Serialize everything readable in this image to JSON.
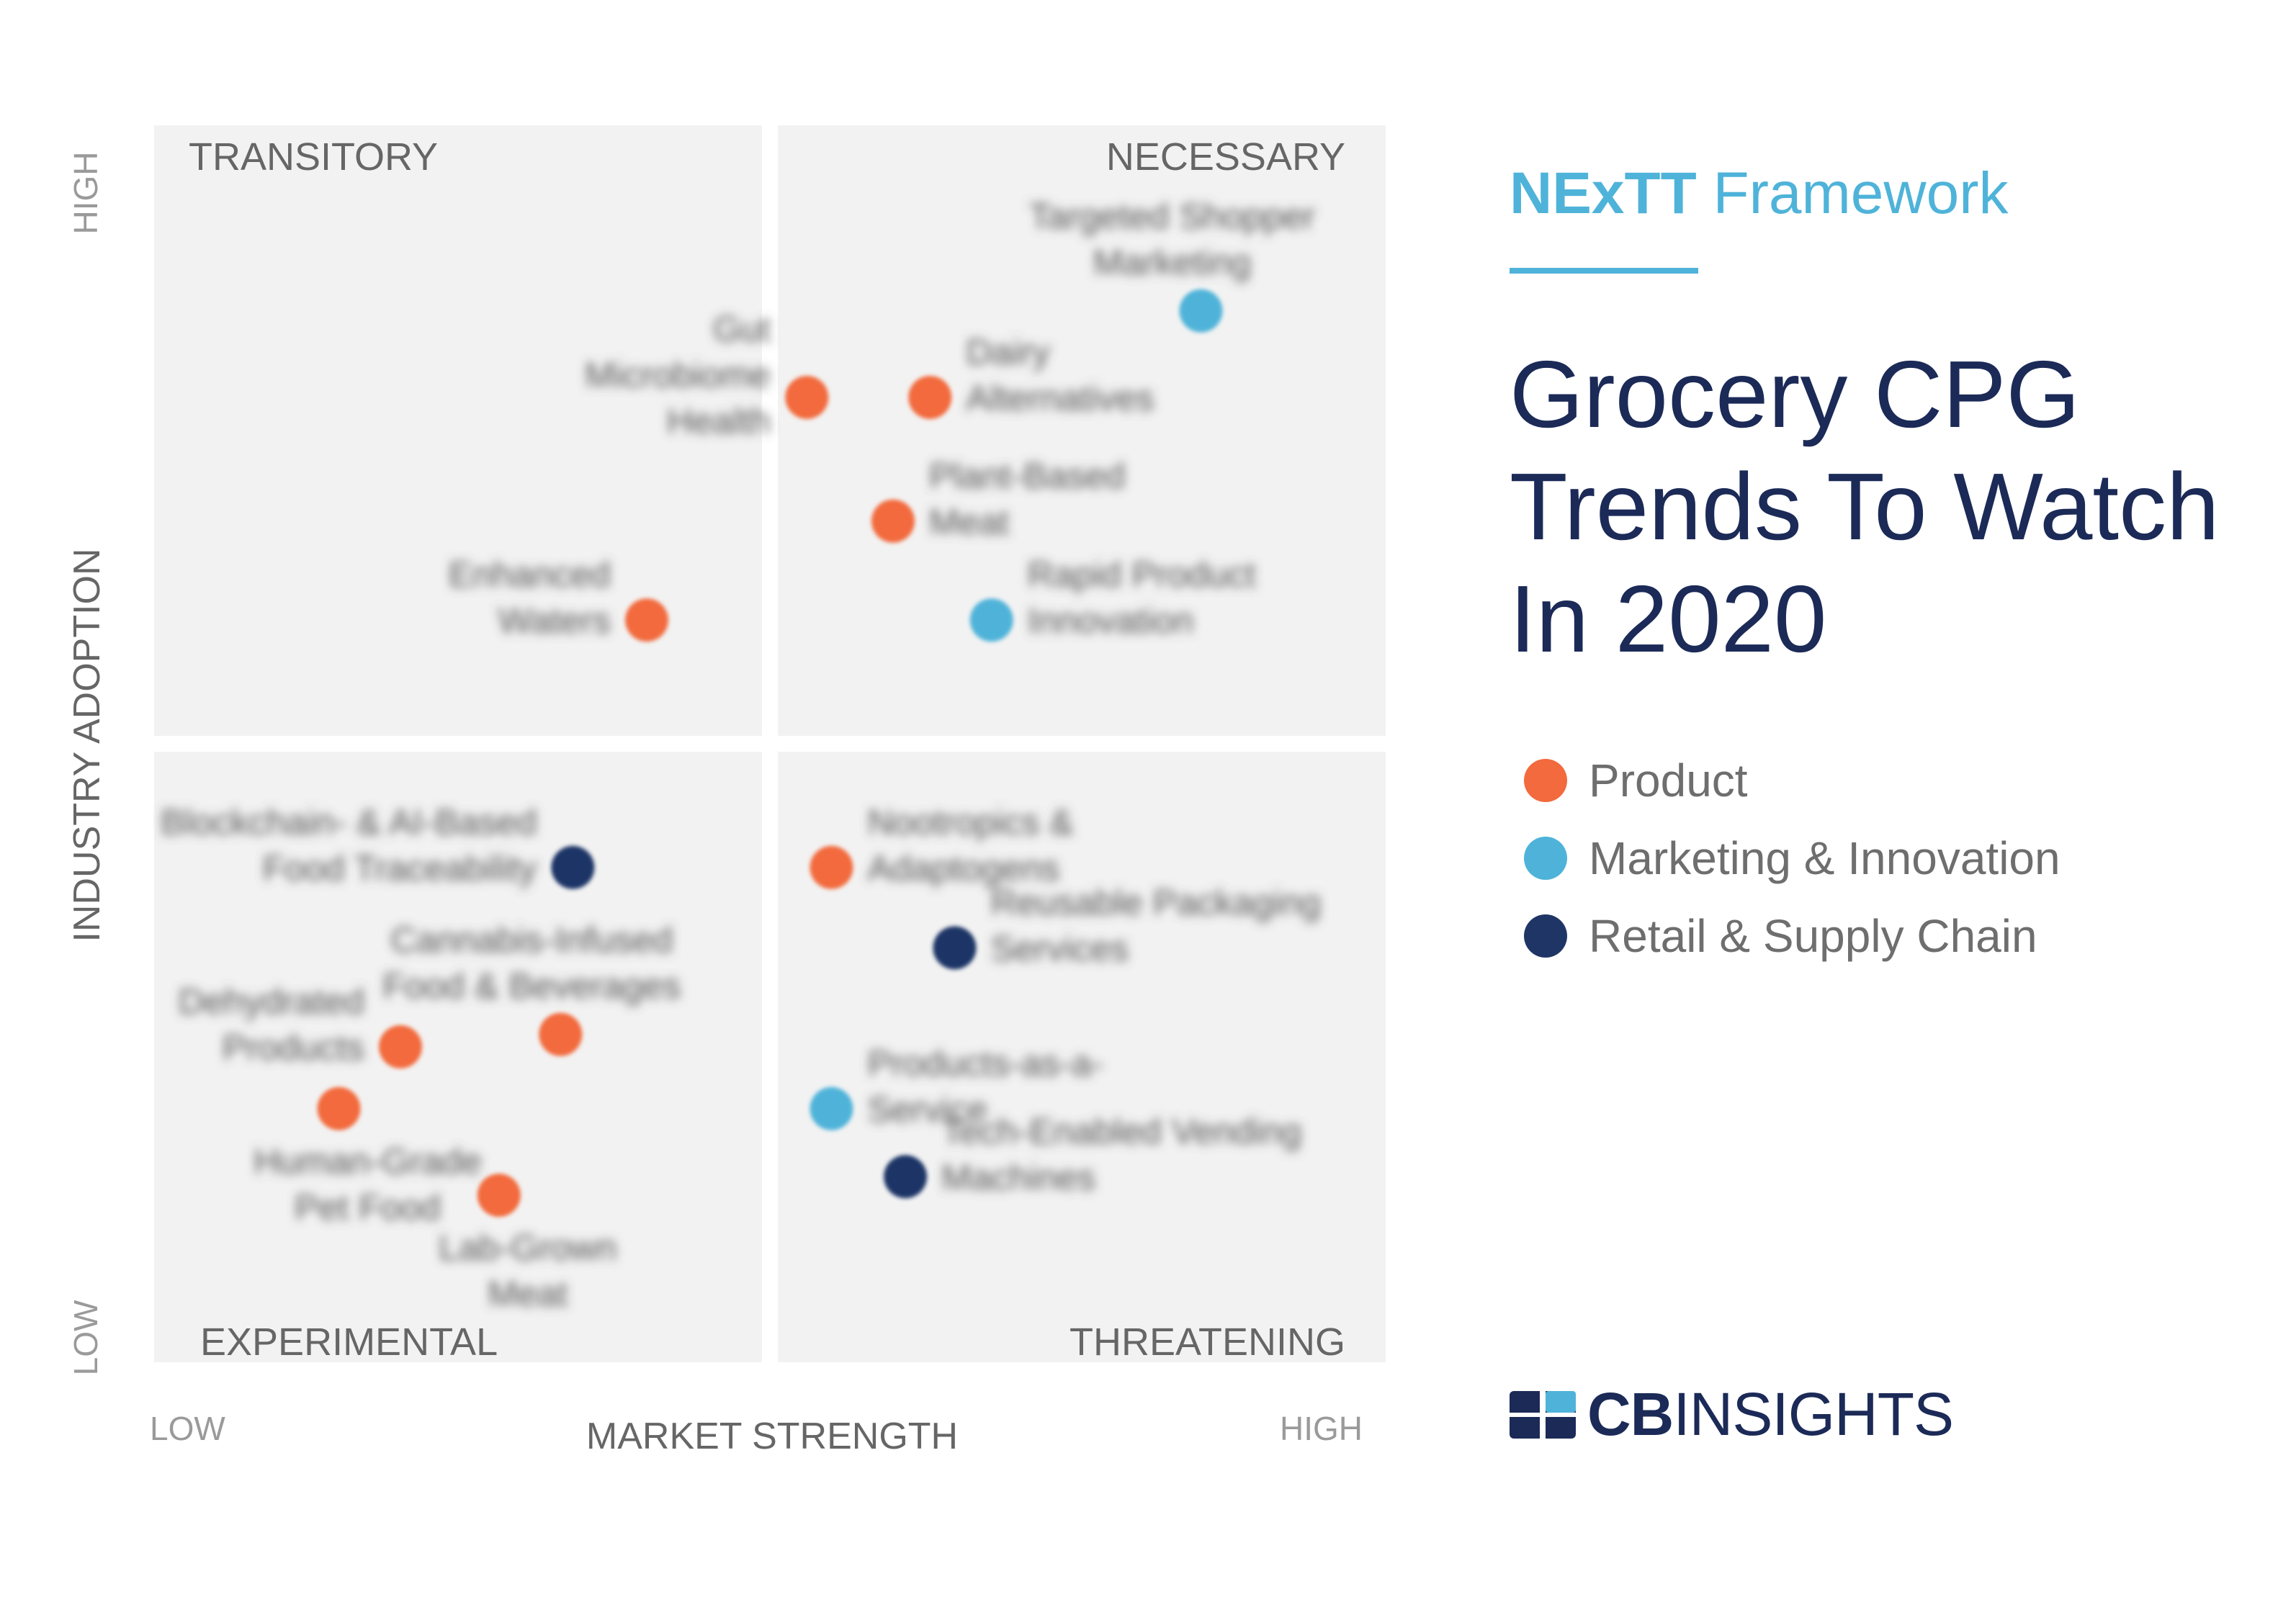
{
  "framework": {
    "bold": "NExTT",
    "rest": "Framework"
  },
  "title_lines": [
    "Grocery CPG",
    "Trends To Watch",
    "In 2020"
  ],
  "legend": [
    {
      "label": "Product",
      "color": "#f26a3d"
    },
    {
      "label": "Marketing & Innovation",
      "color": "#4fb3d9"
    },
    {
      "label": "Retail & Supply Chain",
      "color": "#1f3566"
    }
  ],
  "logo": {
    "bold": "CB",
    "rest": "INSIGHTS",
    "icon": "cb-insights-logo-icon"
  },
  "chart_data": {
    "type": "scatter",
    "quadrants": {
      "top_left": "TRANSITORY",
      "top_right": "NECESSARY",
      "bottom_left": "EXPERIMENTAL",
      "bottom_right": "THREATENING"
    },
    "xlabel": "MARKET STRENGTH",
    "ylabel": "INDUSTRY ADOPTION",
    "x_ticks": [
      "LOW",
      "HIGH"
    ],
    "y_ticks": [
      "LOW",
      "HIGH"
    ],
    "xlim": [
      0,
      1
    ],
    "ylim": [
      0,
      1
    ],
    "quadrant_split": {
      "x": 0.5,
      "y": 0.5
    },
    "categories": {
      "product": "#f26a3d",
      "marketing": "#4fb3d9",
      "retail": "#1f3566"
    },
    "points": [
      {
        "label": [
          "Targeted Shopper",
          "Marketing"
        ],
        "category": "marketing",
        "x": 0.85,
        "y": 0.85,
        "label_side": "above"
      },
      {
        "label": [
          "Gut",
          "Microbiome",
          "Health"
        ],
        "category": "product",
        "x": 0.53,
        "y": 0.78,
        "label_side": "left"
      },
      {
        "label": [
          "Dairy",
          "Alternatives"
        ],
        "category": "product",
        "x": 0.63,
        "y": 0.78,
        "label_side": "right"
      },
      {
        "label": [
          "Plant-Based",
          "Meat"
        ],
        "category": "product",
        "x": 0.6,
        "y": 0.68,
        "label_side": "right"
      },
      {
        "label": [
          "Enhanced",
          "Waters"
        ],
        "category": "product",
        "x": 0.4,
        "y": 0.6,
        "label_side": "left"
      },
      {
        "label": [
          "Rapid Product",
          "Innovation"
        ],
        "category": "marketing",
        "x": 0.68,
        "y": 0.6,
        "label_side": "right"
      },
      {
        "label": [
          "Blockchain- & AI-Based",
          "Food Traceability"
        ],
        "category": "retail",
        "x": 0.34,
        "y": 0.4,
        "label_side": "left"
      },
      {
        "label": [
          "Nootropics &",
          "Adaptogens"
        ],
        "category": "product",
        "x": 0.55,
        "y": 0.4,
        "label_side": "right"
      },
      {
        "label": [
          "Reusable Packaging",
          "Services"
        ],
        "category": "retail",
        "x": 0.65,
        "y": 0.335,
        "label_side": "right"
      },
      {
        "label": [
          "Cannabis-Infused",
          "Food & Beverages"
        ],
        "category": "product",
        "x": 0.33,
        "y": 0.265,
        "label_side": "above"
      },
      {
        "label": [
          "Dehydrated",
          "Products"
        ],
        "category": "product",
        "x": 0.2,
        "y": 0.255,
        "label_side": "left"
      },
      {
        "label": [
          "Products-as-a-",
          "Service"
        ],
        "category": "marketing",
        "x": 0.55,
        "y": 0.205,
        "label_side": "right"
      },
      {
        "label": [
          "Human-Grade",
          "Pet Food"
        ],
        "category": "product",
        "x": 0.15,
        "y": 0.205,
        "label_side": "below"
      },
      {
        "label": [
          "Tech-Enabled Vending",
          "Machines"
        ],
        "category": "retail",
        "x": 0.61,
        "y": 0.15,
        "label_side": "right"
      },
      {
        "label": [
          "Lab-Grown",
          "Meat"
        ],
        "category": "product",
        "x": 0.28,
        "y": 0.135,
        "label_side": "below"
      }
    ]
  }
}
